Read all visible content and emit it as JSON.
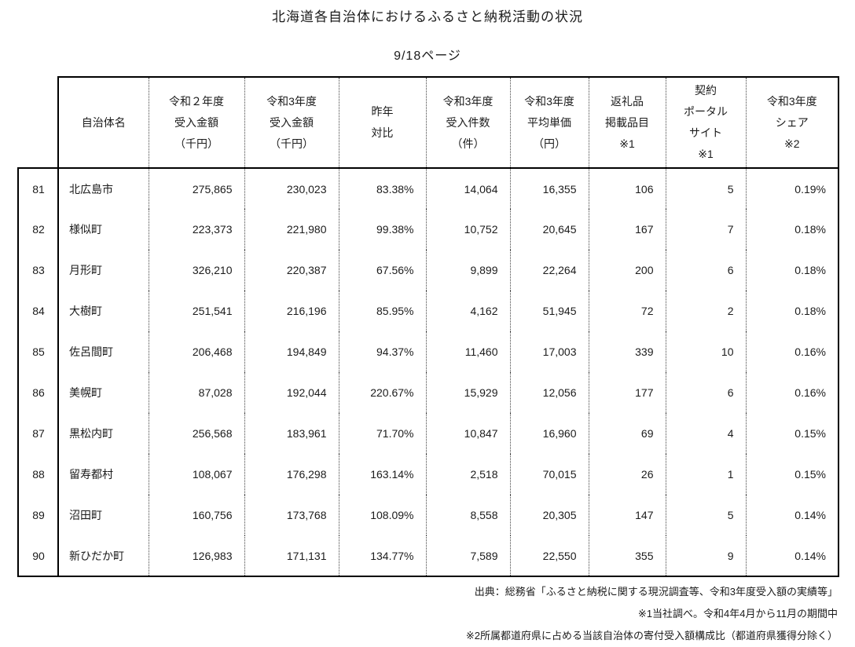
{
  "page": {
    "title": "北海道各自治体におけるふるさと納税活動の状況",
    "page_indicator": "9/18ページ"
  },
  "table": {
    "columns": [
      {
        "key": "rank",
        "label": ""
      },
      {
        "key": "name",
        "label": "自治体名"
      },
      {
        "key": "r2_amount",
        "label": "令和２年度\n受入金額\n（千円）"
      },
      {
        "key": "r3_amount",
        "label": "令和3年度\n受入金額\n（千円）"
      },
      {
        "key": "yoy",
        "label": "昨年\n対比"
      },
      {
        "key": "r3_count",
        "label": "令和3年度\n受入件数\n（件）"
      },
      {
        "key": "r3_avg",
        "label": "令和3年度\n平均単価\n（円）"
      },
      {
        "key": "items",
        "label": "返礼品\n掲載品目\n※1"
      },
      {
        "key": "portal",
        "label": "契約\nポータル\nサイト\n※1"
      },
      {
        "key": "share",
        "label": "令和3年度\nシェア\n※2"
      }
    ],
    "rows": [
      [
        "81",
        "北広島市",
        "275,865",
        "230,023",
        "83.38%",
        "14,064",
        "16,355",
        "106",
        "5",
        "0.19%"
      ],
      [
        "82",
        "様似町",
        "223,373",
        "221,980",
        "99.38%",
        "10,752",
        "20,645",
        "167",
        "7",
        "0.18%"
      ],
      [
        "83",
        "月形町",
        "326,210",
        "220,387",
        "67.56%",
        "9,899",
        "22,264",
        "200",
        "6",
        "0.18%"
      ],
      [
        "84",
        "大樹町",
        "251,541",
        "216,196",
        "85.95%",
        "4,162",
        "51,945",
        "72",
        "2",
        "0.18%"
      ],
      [
        "85",
        "佐呂間町",
        "206,468",
        "194,849",
        "94.37%",
        "11,460",
        "17,003",
        "339",
        "10",
        "0.16%"
      ],
      [
        "86",
        "美幌町",
        "87,028",
        "192,044",
        "220.67%",
        "15,929",
        "12,056",
        "177",
        "6",
        "0.16%"
      ],
      [
        "87",
        "黒松内町",
        "256,568",
        "183,961",
        "71.70%",
        "10,847",
        "16,960",
        "69",
        "4",
        "0.15%"
      ],
      [
        "88",
        "留寿都村",
        "108,067",
        "176,298",
        "163.14%",
        "2,518",
        "70,015",
        "26",
        "1",
        "0.15%"
      ],
      [
        "89",
        "沼田町",
        "160,756",
        "173,768",
        "108.09%",
        "8,558",
        "20,305",
        "147",
        "5",
        "0.14%"
      ],
      [
        "90",
        "新ひだか町",
        "126,983",
        "171,131",
        "134.77%",
        "7,589",
        "22,550",
        "355",
        "9",
        "0.14%"
      ]
    ]
  },
  "notes": [
    "出典：総務省「ふるさと納税に関する現況調査等、令和3年度受入額の実績等」",
    "※1当社調べ。令和4年4月から11月の期間中",
    "※2所属都道府県に占める当該自治体の寄付受入額構成比（都道府県獲得分除く）"
  ]
}
